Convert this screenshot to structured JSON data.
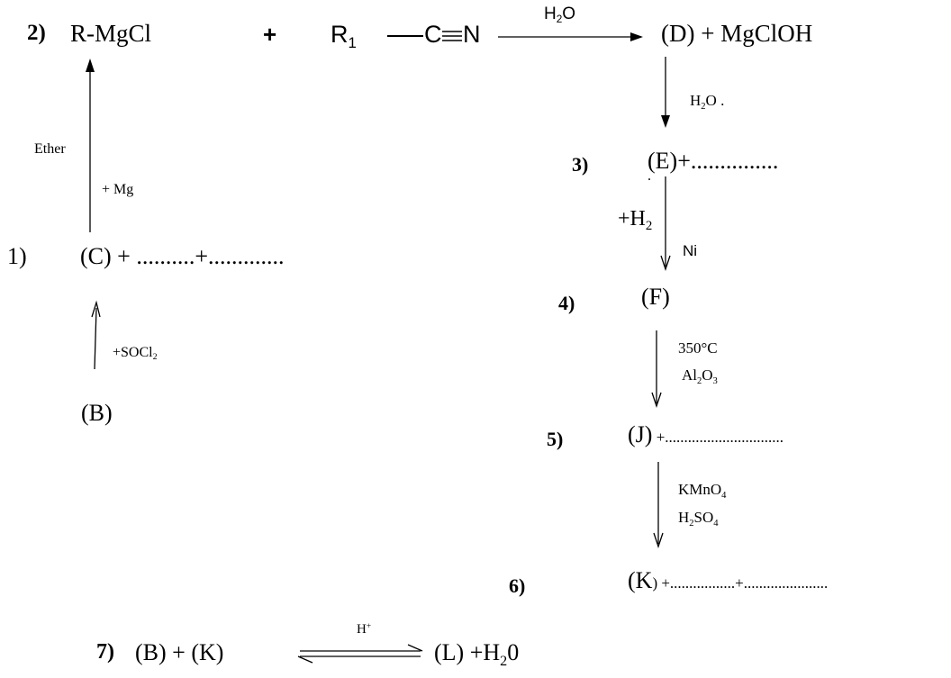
{
  "step_numbers": {
    "s1": "1)",
    "s2": "2)",
    "s3": "3)",
    "s4": "4)",
    "s5": "5)",
    "s6": "6)",
    "s7": "7)"
  },
  "row1": {
    "grignard": "R-MgCl",
    "plus": "+",
    "nitrile_r": "R",
    "nitrile_sub": "1",
    "nitrile_c": "C",
    "nitrile_n": "N",
    "arrow_reagent_main": "H",
    "arrow_reagent_sub": "2",
    "arrow_reagent_end": "O",
    "product": "(D) + MgClOH"
  },
  "left_column": {
    "ether": "Ether",
    "plus_mg": "+ Mg",
    "c_line": "(C)  +  ..........+.............",
    "socl2_main": "+SOCl",
    "socl2_sub": "2",
    "b": "(B)"
  },
  "right_column": {
    "h2o_main": "H",
    "h2o_sub": "2",
    "h2o_end": "O  .",
    "e_line": "(E)+...............",
    "dot": ".",
    "h2_plus": "+H",
    "h2_sub": "2",
    "ni": "Ni",
    "f": "(F)",
    "temp": "350°C",
    "al": "Al",
    "al_sub1": "2",
    "al_o": "O",
    "al_sub2": "3",
    "j_main": "(J)",
    "j_rest": "  +...............................",
    "kmno": "KMnO",
    "kmno_sub": "4",
    "h2so_h": "H",
    "h2so_sub1": "2",
    "h2so_mid": "SO",
    "h2so_sub2": "4",
    "k_main": "(K",
    "k_rest": ")  +.................+......................"
  },
  "row7": {
    "reactants": "(B)  +  (K)",
    "catalyst": "H",
    "catalyst_sup": "+",
    "product_main": "(L)  +H",
    "product_sub": "2",
    "product_end": "0"
  }
}
